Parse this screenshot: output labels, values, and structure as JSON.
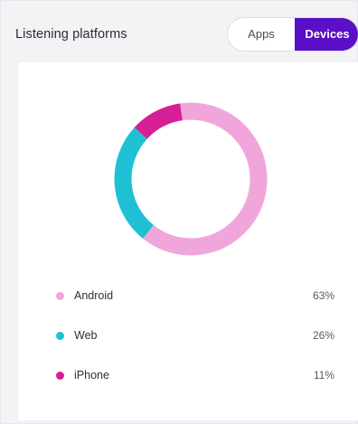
{
  "header": {
    "title": "Listening platforms",
    "toggle": {
      "options": [
        "Apps",
        "Devices"
      ],
      "selected": "Devices"
    }
  },
  "colors": {
    "accent": "#5a0fc8",
    "android": "#f0a6da",
    "web": "#1fc0d4",
    "iphone": "#d61f97"
  },
  "chart_data": {
    "type": "pie",
    "categories": [
      "Android",
      "Web",
      "iPhone"
    ],
    "values": [
      63,
      26,
      11
    ],
    "legend_position": "bottom"
  },
  "legend": [
    {
      "label": "Android",
      "value": "63%",
      "color": "#f0a6da"
    },
    {
      "label": "Web",
      "value": "26%",
      "color": "#1fc0d4"
    },
    {
      "label": "iPhone",
      "value": "11%",
      "color": "#d61f97"
    }
  ]
}
